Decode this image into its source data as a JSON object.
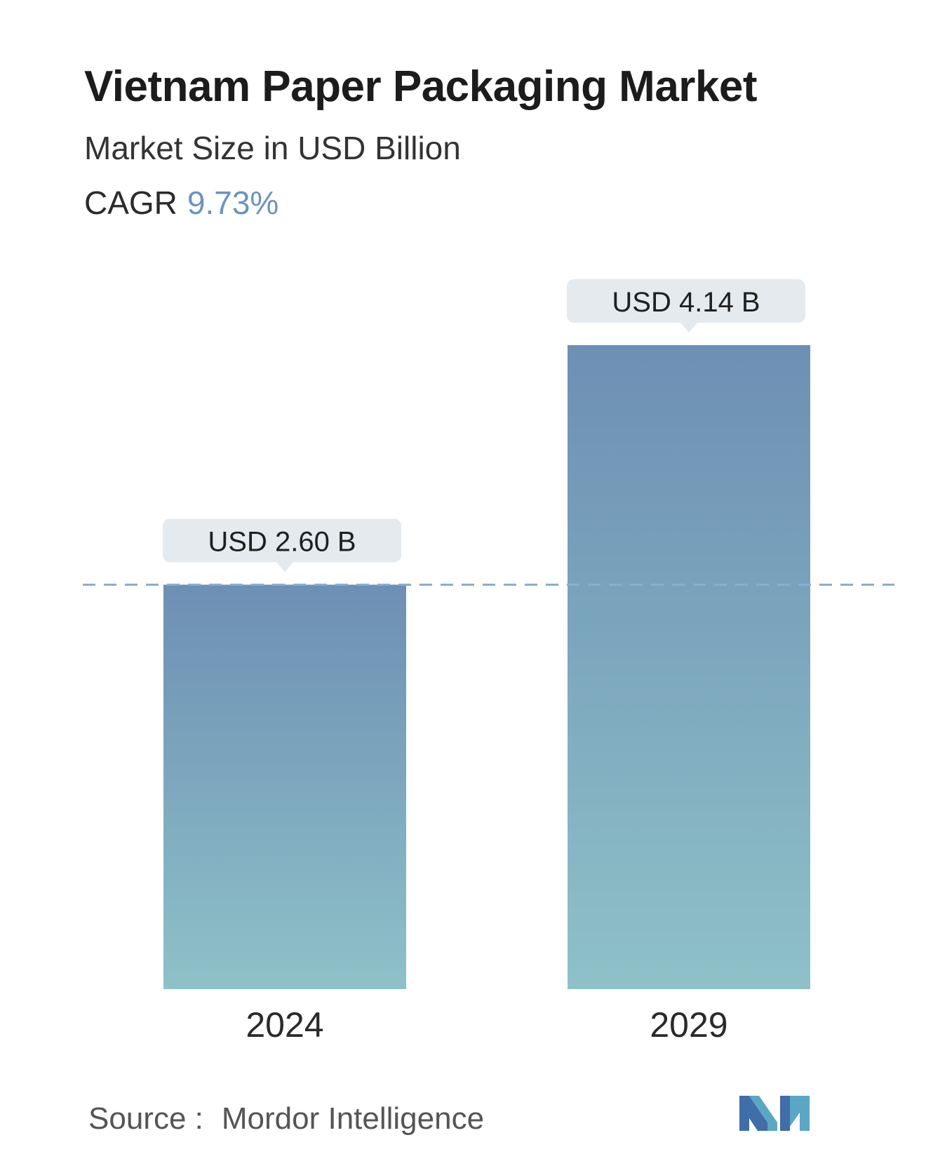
{
  "header": {
    "title": "Vietnam Paper Packaging Market",
    "subtitle": "Market Size in USD Billion",
    "cagr_label": "CAGR",
    "cagr_value": "9.73%"
  },
  "chart_data": {
    "type": "bar",
    "title": "Vietnam Paper Packaging Market",
    "subtitle": "Market Size in USD Billion",
    "categories": [
      "2024",
      "2029"
    ],
    "values": [
      2.6,
      4.14
    ],
    "data_labels": [
      "USD 2.60 B",
      "USD 4.14 B"
    ],
    "ylabel": "",
    "xlabel": "",
    "ylim": [
      0,
      4.14
    ],
    "grid": false,
    "reference_line": {
      "value": 2.6,
      "style": "dashed"
    },
    "colors": {
      "bar_top": "#6d8fb4",
      "bar_bottom": "#8ec1c8",
      "callout_bg": "#e4eaee",
      "ref_line": "#8aaed0"
    }
  },
  "footer": {
    "source_label": "Source :",
    "source_value": "Mordor Intelligence",
    "logo": "mordor-intelligence-logo"
  }
}
